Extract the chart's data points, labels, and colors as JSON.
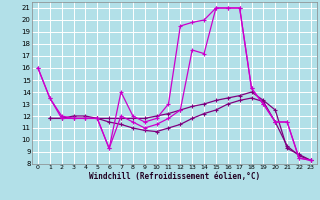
{
  "bg_color": "#b2e0e8",
  "grid_color": "#ffffff",
  "line_color_dark": "#800080",
  "line_color_bright": "#cc00cc",
  "xlabel": "Windchill (Refroidissement éolien,°C)",
  "ylim": [
    8,
    21.5
  ],
  "xlim": [
    -0.5,
    23.5
  ],
  "yticks": [
    8,
    9,
    10,
    11,
    12,
    13,
    14,
    15,
    16,
    17,
    18,
    19,
    20,
    21
  ],
  "xticks": [
    0,
    1,
    2,
    3,
    4,
    5,
    6,
    7,
    8,
    9,
    10,
    11,
    12,
    13,
    14,
    15,
    16,
    17,
    18,
    19,
    20,
    21,
    22,
    23
  ],
  "s1_x": [
    0,
    1,
    2,
    3,
    4,
    5,
    6,
    7,
    8,
    9,
    10,
    11,
    12,
    13,
    14,
    15,
    16,
    17,
    18,
    19,
    20,
    21,
    22,
    23
  ],
  "s1_y": [
    16.0,
    13.5,
    12.0,
    11.8,
    11.8,
    11.8,
    9.3,
    14.0,
    12.0,
    11.5,
    11.8,
    13.0,
    19.5,
    19.8,
    20.0,
    21.0,
    21.0,
    21.0,
    14.3,
    13.0,
    11.5,
    11.5,
    8.5,
    8.3
  ],
  "s2_x": [
    0,
    1,
    2,
    3,
    4,
    5,
    6,
    7,
    8,
    9,
    10,
    11,
    12,
    13,
    14,
    15,
    16,
    17,
    18,
    19,
    20,
    21,
    22,
    23
  ],
  "s2_y": [
    16.0,
    13.5,
    11.8,
    11.8,
    11.8,
    11.8,
    9.3,
    12.0,
    11.5,
    11.0,
    11.3,
    11.8,
    12.5,
    17.5,
    17.2,
    21.0,
    21.0,
    21.0,
    14.3,
    13.0,
    11.5,
    11.5,
    8.5,
    8.3
  ],
  "s3_x": [
    1,
    2,
    3,
    4,
    5,
    6,
    7,
    8,
    9,
    10,
    11,
    12,
    13,
    14,
    15,
    16,
    17,
    18,
    19,
    20,
    21,
    22,
    23
  ],
  "s3_y": [
    11.8,
    11.8,
    11.8,
    11.8,
    11.8,
    11.8,
    11.8,
    11.8,
    11.8,
    12.0,
    12.2,
    12.5,
    12.8,
    13.0,
    13.3,
    13.5,
    13.7,
    14.0,
    13.3,
    12.5,
    9.3,
    8.8,
    8.3
  ],
  "s4_x": [
    1,
    2,
    3,
    4,
    5,
    6,
    7,
    8,
    9,
    10,
    11,
    12,
    13,
    14,
    15,
    16,
    17,
    18,
    19,
    20,
    21,
    22,
    23
  ],
  "s4_y": [
    11.8,
    11.8,
    12.0,
    12.0,
    11.8,
    11.5,
    11.3,
    11.0,
    10.8,
    10.7,
    11.0,
    11.3,
    11.8,
    12.2,
    12.5,
    13.0,
    13.3,
    13.5,
    13.2,
    11.5,
    9.5,
    8.7,
    8.3
  ]
}
